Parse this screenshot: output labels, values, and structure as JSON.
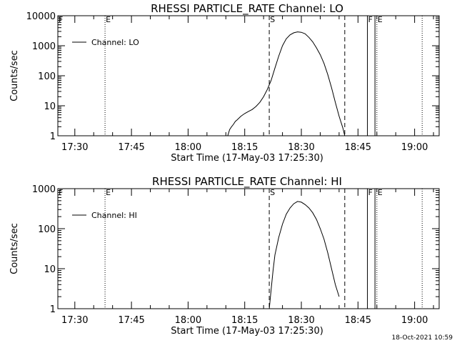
{
  "timestamp": "18-Oct-2021 10:59",
  "chart_data": [
    {
      "type": "line",
      "title": "RHESSI PARTICLE_RATE Channel: LO",
      "xlabel": "Start Time (17-May-03 17:25:30)",
      "ylabel": "Counts/sec",
      "yscale": "log",
      "ylim": [
        1,
        10000
      ],
      "xlim": [
        "17:25:30",
        "19:06:30"
      ],
      "x_ticks": [
        "17:30",
        "17:45",
        "18:00",
        "18:15",
        "18:30",
        "18:45",
        "19:00"
      ],
      "y_ticks": [
        "1",
        "10",
        "100",
        "1000",
        "10000"
      ],
      "legend": {
        "entries": [
          "Channel: LO"
        ],
        "placement": "top-left"
      },
      "grid": false,
      "markers": [
        {
          "label": "F",
          "time": "17:25:30",
          "style": "dotted"
        },
        {
          "label": "E",
          "time": "17:38:00",
          "style": "dotted"
        },
        {
          "label": "S",
          "time": "18:21:30",
          "style": "dashed"
        },
        {
          "label": "",
          "time": "18:41:30",
          "style": "dashed"
        },
        {
          "label": "F",
          "time": "18:47:30",
          "style": "solid"
        },
        {
          "label": "",
          "time": "18:49:30",
          "style": "solid"
        },
        {
          "label": "E",
          "time": "18:50:00",
          "style": "dotted"
        },
        {
          "label": "",
          "time": "19:02:00",
          "style": "dotted"
        }
      ],
      "series": [
        {
          "name": "Channel: LO",
          "x": [
            "18:10:30",
            "18:11:00",
            "18:11:30",
            "18:12:00",
            "18:12:30",
            "18:13:00",
            "18:14:00",
            "18:15:00",
            "18:16:00",
            "18:17:00",
            "18:18:00",
            "18:19:00",
            "18:20:00",
            "18:21:00",
            "18:22:00",
            "18:23:00",
            "18:24:00",
            "18:25:00",
            "18:26:00",
            "18:27:00",
            "18:28:00",
            "18:29:00",
            "18:30:00",
            "18:31:00",
            "18:32:00",
            "18:33:00",
            "18:34:00",
            "18:35:00",
            "18:36:00",
            "18:37:00",
            "18:38:00",
            "18:39:00",
            "18:40:00",
            "18:41:00",
            "18:41:30"
          ],
          "y": [
            1,
            1.6,
            2.0,
            2.4,
            3.0,
            3.4,
            4.5,
            5.5,
            6.5,
            7.5,
            9.5,
            13,
            20,
            35,
            70,
            180,
            450,
            1000,
            1700,
            2300,
            2700,
            2900,
            2800,
            2500,
            1900,
            1350,
            850,
            500,
            260,
            110,
            40,
            13,
            4.5,
            1.8,
            1
          ]
        }
      ]
    },
    {
      "type": "line",
      "title": "RHESSI PARTICLE_RATE Channel: HI",
      "xlabel": "Start Time (17-May-03 17:25:30)",
      "ylabel": "Counts/sec",
      "yscale": "log",
      "ylim": [
        1,
        1000
      ],
      "xlim": [
        "17:25:30",
        "19:06:30"
      ],
      "x_ticks": [
        "17:30",
        "17:45",
        "18:00",
        "18:15",
        "18:30",
        "18:45",
        "19:00"
      ],
      "y_ticks": [
        "1",
        "10",
        "100",
        "1000"
      ],
      "legend": {
        "entries": [
          "Channel: HI"
        ],
        "placement": "top-left"
      },
      "grid": false,
      "markers": [
        {
          "label": "F",
          "time": "17:25:30",
          "style": "dotted"
        },
        {
          "label": "E",
          "time": "17:38:00",
          "style": "dotted"
        },
        {
          "label": "S",
          "time": "18:21:30",
          "style": "dashed"
        },
        {
          "label": "",
          "time": "18:41:30",
          "style": "dashed"
        },
        {
          "label": "F",
          "time": "18:47:30",
          "style": "solid"
        },
        {
          "label": "",
          "time": "18:49:30",
          "style": "solid"
        },
        {
          "label": "E",
          "time": "18:50:00",
          "style": "dotted"
        },
        {
          "label": "",
          "time": "19:02:00",
          "style": "dotted"
        }
      ],
      "series": [
        {
          "name": "Channel: HI",
          "x": [
            "18:21:30",
            "18:22:00",
            "18:22:30",
            "18:23:00",
            "18:24:00",
            "18:25:00",
            "18:26:00",
            "18:27:00",
            "18:28:00",
            "18:29:00",
            "18:30:00",
            "18:31:00",
            "18:32:00",
            "18:33:00",
            "18:34:00",
            "18:35:00",
            "18:36:00",
            "18:37:00",
            "18:38:00",
            "18:39:00",
            "18:40:00"
          ],
          "y": [
            1,
            3,
            9,
            22,
            60,
            130,
            230,
            330,
            420,
            480,
            460,
            400,
            330,
            250,
            170,
            100,
            55,
            25,
            10,
            4,
            2
          ]
        }
      ]
    }
  ]
}
